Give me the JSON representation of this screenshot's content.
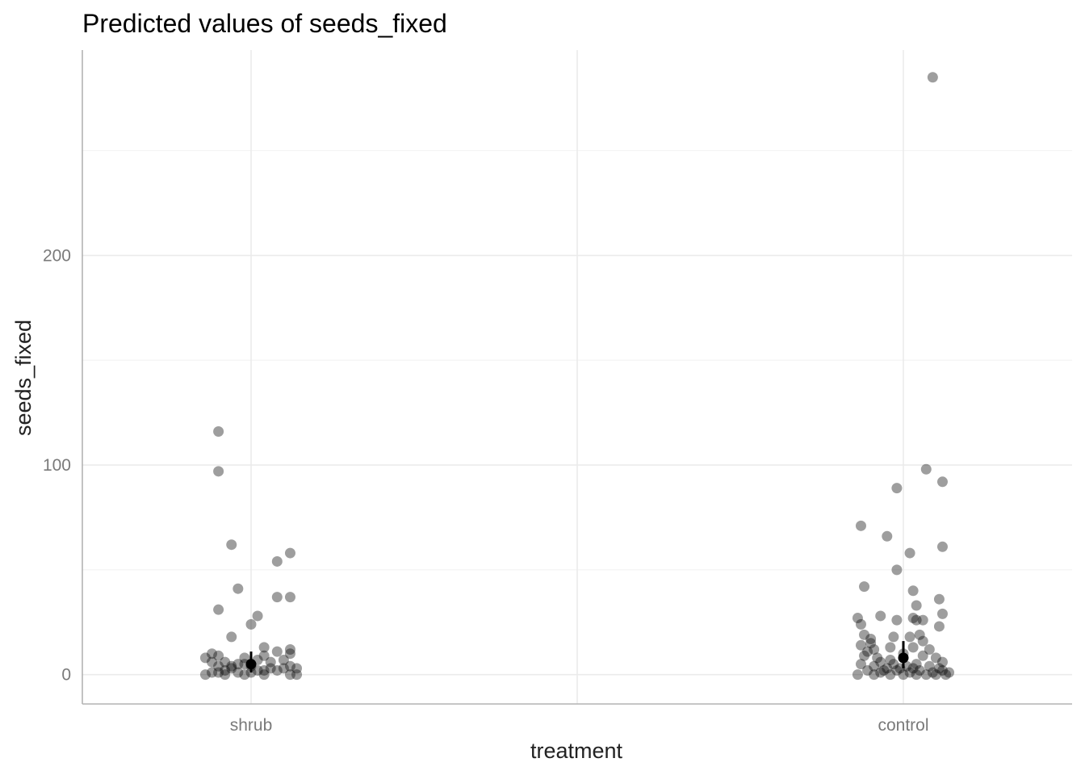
{
  "chart_data": {
    "type": "scatter",
    "title": "Predicted values of seeds_fixed",
    "xlabel": "treatment",
    "ylabel": "seeds_fixed",
    "categories": [
      "shrub",
      "control"
    ],
    "ylim": [
      -14,
      298
    ],
    "yticks": [
      0,
      100,
      200
    ],
    "grid": true,
    "point_color": "#000000",
    "point_opacity": 0.38,
    "predictions": [
      {
        "category": "shrub",
        "value": 5,
        "ci_low": 1,
        "ci_high": 11
      },
      {
        "category": "control",
        "value": 8,
        "ci_low": 3,
        "ci_high": 16
      }
    ],
    "observations": [
      {
        "category": "shrub",
        "points": [
          [
            -0.05,
            116
          ],
          [
            -0.05,
            97
          ],
          [
            -0.03,
            62
          ],
          [
            -0.02,
            41
          ],
          [
            -0.05,
            31
          ],
          [
            -0.03,
            18
          ],
          [
            0.01,
            28
          ],
          [
            0.0,
            24
          ],
          [
            0.04,
            54
          ],
          [
            0.06,
            58
          ],
          [
            0.04,
            37
          ],
          [
            0.06,
            37
          ],
          [
            0.02,
            13
          ],
          [
            0.04,
            11
          ],
          [
            0.06,
            12
          ],
          [
            0.06,
            10
          ],
          [
            0.02,
            9
          ],
          [
            -0.06,
            10
          ],
          [
            -0.07,
            8
          ],
          [
            -0.05,
            9
          ],
          [
            -0.04,
            6
          ],
          [
            -0.06,
            6
          ],
          [
            -0.02,
            5
          ],
          [
            0.0,
            4
          ],
          [
            0.01,
            7
          ],
          [
            -0.01,
            8
          ],
          [
            0.03,
            6
          ],
          [
            0.05,
            7
          ],
          [
            0.06,
            4
          ],
          [
            0.04,
            2
          ],
          [
            0.03,
            3
          ],
          [
            0.02,
            2
          ],
          [
            -0.06,
            1
          ],
          [
            -0.05,
            1
          ],
          [
            -0.04,
            2
          ],
          [
            -0.03,
            3
          ],
          [
            -0.02,
            1
          ],
          [
            -0.01,
            0
          ],
          [
            0.0,
            1
          ],
          [
            0.01,
            2
          ],
          [
            0.02,
            0
          ],
          [
            0.06,
            0
          ],
          [
            0.07,
            0
          ],
          [
            0.05,
            3
          ],
          [
            -0.05,
            4
          ],
          [
            -0.03,
            4
          ],
          [
            -0.01,
            5
          ],
          [
            0.07,
            3
          ],
          [
            -0.04,
            0
          ],
          [
            -0.07,
            0
          ]
        ]
      },
      {
        "category": "control",
        "points": [
          [
            0.045,
            285
          ],
          [
            0.035,
            98
          ],
          [
            0.06,
            92
          ],
          [
            -0.01,
            89
          ],
          [
            0.06,
            61
          ],
          [
            -0.065,
            71
          ],
          [
            -0.025,
            66
          ],
          [
            0.01,
            58
          ],
          [
            -0.01,
            50
          ],
          [
            0.015,
            40
          ],
          [
            -0.06,
            42
          ],
          [
            0.02,
            33
          ],
          [
            0.055,
            36
          ],
          [
            0.06,
            29
          ],
          [
            -0.07,
            27
          ],
          [
            -0.035,
            28
          ],
          [
            -0.01,
            26
          ],
          [
            0.015,
            27
          ],
          [
            0.02,
            26
          ],
          [
            0.03,
            26
          ],
          [
            0.055,
            23
          ],
          [
            -0.065,
            24
          ],
          [
            0.025,
            19
          ],
          [
            -0.06,
            19
          ],
          [
            -0.05,
            17
          ],
          [
            -0.015,
            18
          ],
          [
            0.01,
            18
          ],
          [
            0.03,
            16
          ],
          [
            -0.065,
            14
          ],
          [
            -0.05,
            15
          ],
          [
            -0.045,
            12
          ],
          [
            -0.055,
            11
          ],
          [
            -0.02,
            13
          ],
          [
            0.015,
            13
          ],
          [
            0.04,
            12
          ],
          [
            0.0,
            10
          ],
          [
            -0.06,
            9
          ],
          [
            -0.04,
            8
          ],
          [
            -0.02,
            7
          ],
          [
            0.03,
            9
          ],
          [
            0.05,
            8
          ],
          [
            0.06,
            6
          ],
          [
            -0.065,
            5
          ],
          [
            -0.045,
            4
          ],
          [
            -0.035,
            6
          ],
          [
            -0.015,
            5
          ],
          [
            0.005,
            4
          ],
          [
            0.02,
            5
          ],
          [
            0.04,
            4
          ],
          [
            0.055,
            3
          ],
          [
            -0.055,
            2
          ],
          [
            -0.035,
            1
          ],
          [
            -0.025,
            3
          ],
          [
            -0.01,
            2
          ],
          [
            0.01,
            1
          ],
          [
            0.025,
            2
          ],
          [
            0.045,
            1
          ],
          [
            0.065,
            0
          ],
          [
            -0.07,
            0
          ],
          [
            -0.045,
            0
          ],
          [
            -0.02,
            0
          ],
          [
            0.0,
            0
          ],
          [
            0.02,
            0
          ],
          [
            0.035,
            0
          ],
          [
            0.05,
            0
          ],
          [
            0.06,
            2
          ],
          [
            -0.03,
            2
          ],
          [
            -0.005,
            3
          ],
          [
            0.015,
            3
          ],
          [
            0.07,
            1
          ]
        ]
      }
    ]
  }
}
